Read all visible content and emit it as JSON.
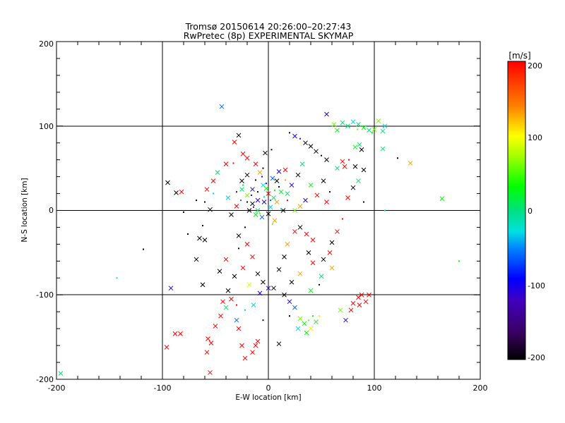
{
  "chart_data": {
    "type": "scatter",
    "title": "Tromsø 20150614 20:26:00–20:27:43",
    "subtitle": "RwPretec (8p) EXPERIMENTAL SKYMAP",
    "xlabel": "E-W location [km]",
    "ylabel": "N-S location [km]",
    "xlim": [
      -200,
      200
    ],
    "ylim": [
      -200,
      200
    ],
    "xticks": [
      "-200",
      "-100",
      "0",
      "100",
      "200"
    ],
    "yticks": [
      "-200",
      "-100",
      "0",
      "100",
      "200"
    ],
    "grid": "on (at -100, 0, 100 km)",
    "colorbar": {
      "label": "[m/s]",
      "min": -200,
      "max": 200,
      "ticks": [
        "200",
        "100",
        "0",
        "-100",
        "-200"
      ],
      "scale": "black-purple-blue-cyan-green-yellow-red"
    },
    "markers": {
      "cross": "large x marker",
      "dot": "small point"
    },
    "point_format": "[x_km, y_km, velocity_m_per_s, marker]",
    "points": [
      [
        -196,
        -193,
        5,
        "cross"
      ],
      [
        -143,
        -80,
        -20,
        "dot"
      ],
      [
        -118,
        -46,
        -200,
        "dot"
      ],
      [
        -95,
        33,
        -200,
        "cross"
      ],
      [
        -92,
        -92,
        -110,
        "cross"
      ],
      [
        -88,
        -146,
        200,
        "cross"
      ],
      [
        -83,
        -146,
        200,
        "cross"
      ],
      [
        -82,
        22,
        200,
        "cross"
      ],
      [
        -87,
        21,
        -200,
        "cross"
      ],
      [
        -96,
        -162,
        200,
        "cross"
      ],
      [
        -68,
        -58,
        -200,
        "cross"
      ],
      [
        -62,
        -88,
        -200,
        "cross"
      ],
      [
        -65,
        -33,
        -200,
        "cross"
      ],
      [
        -60,
        -35,
        -200,
        "cross"
      ],
      [
        -57,
        -152,
        200,
        "cross"
      ],
      [
        -54,
        -157,
        200,
        "cross"
      ],
      [
        -55,
        -192,
        200,
        "cross"
      ],
      [
        -58,
        -168,
        200,
        "cross"
      ],
      [
        -50,
        -137,
        200,
        "cross"
      ],
      [
        -45,
        -125,
        200,
        "cross"
      ],
      [
        -43,
        -108,
        200,
        "cross"
      ],
      [
        -44,
        123,
        -60,
        "cross"
      ],
      [
        -55,
        1,
        -200,
        "cross"
      ],
      [
        -60,
        10,
        -200,
        "dot"
      ],
      [
        -62,
        -18,
        -200,
        "dot"
      ],
      [
        -58,
        25,
        200,
        "cross"
      ],
      [
        -52,
        35,
        200,
        "cross"
      ],
      [
        -48,
        45,
        5,
        "cross"
      ],
      [
        -46,
        -72,
        -200,
        "cross"
      ],
      [
        -40,
        -58,
        200,
        "cross"
      ],
      [
        -35,
        -105,
        200,
        "cross"
      ],
      [
        -30,
        -130,
        -60,
        "cross"
      ],
      [
        -28,
        -140,
        200,
        "cross"
      ],
      [
        -25,
        -160,
        200,
        "cross"
      ],
      [
        -22,
        -175,
        200,
        "cross"
      ],
      [
        -15,
        -168,
        200,
        "cross"
      ],
      [
        -12,
        -160,
        200,
        "cross"
      ],
      [
        -10,
        -155,
        200,
        "cross"
      ],
      [
        -32,
        81,
        200,
        "cross"
      ],
      [
        -28,
        89,
        -200,
        "cross"
      ],
      [
        -24,
        67,
        200,
        "cross"
      ],
      [
        -33,
        56,
        200,
        "dot"
      ],
      [
        -25,
        35,
        -200,
        "cross"
      ],
      [
        -20,
        42,
        -200,
        "cross"
      ],
      [
        -15,
        25,
        -110,
        "cross"
      ],
      [
        -10,
        12,
        -110,
        "cross"
      ],
      [
        -5,
        30,
        -30,
        "cross"
      ],
      [
        0,
        20,
        200,
        "cross"
      ],
      [
        5,
        15,
        5,
        "cross"
      ],
      [
        8,
        35,
        -200,
        "cross"
      ],
      [
        12,
        22,
        20,
        "cross"
      ],
      [
        -8,
        45,
        130,
        "cross"
      ],
      [
        -5,
        50,
        -200,
        "dot"
      ],
      [
        -12,
        55,
        200,
        "cross"
      ],
      [
        -3,
        68,
        -200,
        "cross"
      ],
      [
        3,
        72,
        -200,
        "dot"
      ],
      [
        -18,
        0,
        -200,
        "cross"
      ],
      [
        -12,
        -5,
        30,
        "cross"
      ],
      [
        -6,
        -8,
        -60,
        "cross"
      ],
      [
        0,
        -4,
        -200,
        "cross"
      ],
      [
        6,
        -12,
        130,
        "cross"
      ],
      [
        -22,
        -20,
        -200,
        "dot"
      ],
      [
        -28,
        -30,
        -200,
        "cross"
      ],
      [
        -20,
        -40,
        200,
        "cross"
      ],
      [
        -15,
        -55,
        200,
        "cross"
      ],
      [
        -10,
        -75,
        -200,
        "cross"
      ],
      [
        -5,
        -85,
        -200,
        "cross"
      ],
      [
        0,
        -92,
        -110,
        "cross"
      ],
      [
        5,
        -92,
        -200,
        "cross"
      ],
      [
        10,
        -70,
        -200,
        "cross"
      ],
      [
        15,
        -55,
        -200,
        "cross"
      ],
      [
        18,
        -40,
        130,
        "cross"
      ],
      [
        25,
        -25,
        200,
        "cross"
      ],
      [
        30,
        -20,
        -200,
        "cross"
      ],
      [
        36,
        -28,
        200,
        "cross"
      ],
      [
        42,
        -35,
        200,
        "cross"
      ],
      [
        38,
        -50,
        -200,
        "cross"
      ],
      [
        42,
        -62,
        200,
        "cross"
      ],
      [
        30,
        -75,
        130,
        "cross"
      ],
      [
        22,
        -85,
        -200,
        "cross"
      ],
      [
        15,
        -100,
        -200,
        "cross"
      ],
      [
        20,
        -108,
        -110,
        "cross"
      ],
      [
        25,
        -115,
        -60,
        "cross"
      ],
      [
        30,
        -128,
        60,
        "cross"
      ],
      [
        34,
        -134,
        30,
        "cross"
      ],
      [
        40,
        -140,
        90,
        "cross"
      ],
      [
        45,
        -132,
        30,
        "cross"
      ],
      [
        36,
        -145,
        30,
        "cross"
      ],
      [
        28,
        -140,
        -30,
        "cross"
      ],
      [
        10,
        -158,
        -200,
        "cross"
      ],
      [
        20,
        -125,
        -200,
        "dot"
      ],
      [
        38,
        -130,
        60,
        "dot"
      ],
      [
        42,
        -125,
        30,
        "dot"
      ],
      [
        48,
        -125,
        90,
        "dot"
      ],
      [
        25,
        88,
        -110,
        "cross"
      ],
      [
        20,
        92,
        -200,
        "dot"
      ],
      [
        30,
        85,
        -110,
        "dot"
      ],
      [
        35,
        80,
        -200,
        "cross"
      ],
      [
        40,
        76,
        -200,
        "cross"
      ],
      [
        45,
        70,
        -200,
        "cross"
      ],
      [
        50,
        65,
        -200,
        "dot"
      ],
      [
        55,
        60,
        -200,
        "cross"
      ],
      [
        55,
        114,
        -110,
        "cross"
      ],
      [
        62,
        102,
        60,
        "cross"
      ],
      [
        65,
        95,
        30,
        "cross"
      ],
      [
        70,
        104,
        5,
        "cross"
      ],
      [
        75,
        100,
        5,
        "cross"
      ],
      [
        80,
        105,
        -30,
        "cross"
      ],
      [
        85,
        102,
        5,
        "cross"
      ],
      [
        90,
        98,
        30,
        "cross"
      ],
      [
        95,
        95,
        5,
        "cross"
      ],
      [
        100,
        96,
        60,
        "cross"
      ],
      [
        104,
        106,
        60,
        "cross"
      ],
      [
        108,
        94,
        5,
        "cross"
      ],
      [
        110,
        100,
        -30,
        "cross"
      ],
      [
        98,
        92,
        30,
        "dot"
      ],
      [
        92,
        100,
        5,
        "dot"
      ],
      [
        84,
        96,
        60,
        "dot"
      ],
      [
        86,
        78,
        5,
        "cross"
      ],
      [
        82,
        75,
        30,
        "cross"
      ],
      [
        88,
        72,
        -200,
        "cross"
      ],
      [
        90,
        48,
        -200,
        "cross"
      ],
      [
        82,
        52,
        -200,
        "cross"
      ],
      [
        76,
        60,
        200,
        "dot"
      ],
      [
        70,
        58,
        200,
        "cross"
      ],
      [
        72,
        52,
        200,
        "cross"
      ],
      [
        65,
        50,
        5,
        "cross"
      ],
      [
        108,
        73,
        5,
        "cross"
      ],
      [
        122,
        62,
        -200,
        "dot"
      ],
      [
        134,
        56,
        130,
        "cross"
      ],
      [
        164,
        14,
        30,
        "cross"
      ],
      [
        180,
        -60,
        30,
        "dot"
      ],
      [
        110,
        0,
        5,
        "dot"
      ],
      [
        95,
        -100,
        200,
        "cross"
      ],
      [
        88,
        -100,
        200,
        "cross"
      ],
      [
        85,
        -103,
        200,
        "cross"
      ],
      [
        78,
        -118,
        200,
        "cross"
      ],
      [
        80,
        -110,
        200,
        "cross"
      ],
      [
        86,
        -112,
        200,
        "cross"
      ],
      [
        92,
        -108,
        200,
        "cross"
      ],
      [
        73,
        -130,
        -110,
        "cross"
      ],
      [
        68,
        -118,
        60,
        "cross"
      ],
      [
        80,
        27,
        -200,
        "cross"
      ],
      [
        85,
        35,
        5,
        "cross"
      ],
      [
        75,
        15,
        200,
        "cross"
      ],
      [
        90,
        10,
        -200,
        "dot"
      ],
      [
        70,
        -10,
        200,
        "dot"
      ],
      [
        65,
        -25,
        200,
        "cross"
      ],
      [
        60,
        -38,
        -200,
        "cross"
      ],
      [
        58,
        -50,
        200,
        "cross"
      ],
      [
        52,
        -58,
        -200,
        "cross"
      ],
      [
        60,
        -68,
        130,
        "cross"
      ],
      [
        50,
        -78,
        5,
        "cross"
      ],
      [
        48,
        -88,
        -200,
        "dot"
      ],
      [
        40,
        -95,
        30,
        "cross"
      ],
      [
        55,
        10,
        200,
        "cross"
      ],
      [
        58,
        22,
        -200,
        "dot"
      ],
      [
        52,
        35,
        -200,
        "cross"
      ],
      [
        46,
        18,
        200,
        "cross"
      ],
      [
        40,
        30,
        30,
        "cross"
      ],
      [
        35,
        12,
        -110,
        "cross"
      ],
      [
        30,
        5,
        130,
        "cross"
      ],
      [
        25,
        0,
        60,
        "cross"
      ],
      [
        -40,
        55,
        200,
        "cross"
      ],
      [
        -52,
        20,
        -30,
        "dot"
      ],
      [
        -68,
        12,
        -200,
        "dot"
      ],
      [
        -80,
        -2,
        -200,
        "dot"
      ],
      [
        -76,
        -28,
        -200,
        "dot"
      ],
      [
        -35,
        -5,
        -200,
        "cross"
      ],
      [
        -30,
        5,
        200,
        "cross"
      ],
      [
        -38,
        15,
        -30,
        "cross"
      ],
      [
        -25,
        25,
        5,
        "cross"
      ],
      [
        -20,
        18,
        60,
        "cross"
      ],
      [
        -15,
        8,
        -200,
        "cross"
      ],
      [
        -10,
        0,
        5,
        "cross"
      ],
      [
        -4,
        10,
        -110,
        "cross"
      ],
      [
        2,
        4,
        -30,
        "cross"
      ],
      [
        8,
        10,
        130,
        "cross"
      ],
      [
        14,
        0,
        -200,
        "cross"
      ],
      [
        18,
        20,
        5,
        "cross"
      ],
      [
        22,
        30,
        -110,
        "cross"
      ],
      [
        -28,
        -45,
        -200,
        "dot"
      ],
      [
        -32,
        -78,
        -200,
        "cross"
      ],
      [
        -24,
        -68,
        200,
        "cross"
      ],
      [
        -18,
        -88,
        90,
        "cross"
      ],
      [
        -8,
        -98,
        -110,
        "cross"
      ],
      [
        -38,
        -95,
        -200,
        "cross"
      ],
      [
        -40,
        -115,
        5,
        "cross"
      ],
      [
        -30,
        -112,
        200,
        "dot"
      ],
      [
        -22,
        -118,
        5,
        "dot"
      ],
      [
        -14,
        -112,
        -30,
        "cross"
      ],
      [
        -5,
        -130,
        -200,
        "dot"
      ],
      [
        -2,
        26,
        30,
        "cross"
      ],
      [
        4,
        38,
        -60,
        "cross"
      ],
      [
        10,
        46,
        -110,
        "cross"
      ],
      [
        16,
        48,
        200,
        "cross"
      ],
      [
        -20,
        62,
        200,
        "cross"
      ],
      [
        28,
        42,
        -200,
        "cross"
      ],
      [
        32,
        55,
        5,
        "cross"
      ],
      [
        -26,
        12,
        -60,
        "dot"
      ],
      [
        -16,
        18,
        -110,
        "dot"
      ],
      [
        -10,
        22,
        -200,
        "dot"
      ],
      [
        -4,
        16,
        5,
        "dot"
      ],
      [
        2,
        12,
        -60,
        "dot"
      ],
      [
        6,
        24,
        30,
        "dot"
      ],
      [
        -14,
        4,
        -110,
        "dot"
      ],
      [
        -8,
        -4,
        60,
        "dot"
      ],
      [
        -20,
        10,
        -200,
        "dot"
      ],
      [
        -2,
        32,
        -110,
        "dot"
      ],
      [
        10,
        28,
        -200,
        "dot"
      ],
      [
        12,
        2,
        -30,
        "dot"
      ],
      [
        -24,
        30,
        5,
        "dot"
      ],
      [
        -12,
        36,
        -200,
        "dot"
      ],
      [
        18,
        12,
        200,
        "dot"
      ],
      [
        4,
        -16,
        60,
        "dot"
      ],
      [
        -30,
        22,
        -110,
        "dot"
      ],
      [
        16,
        36,
        130,
        "dot"
      ],
      [
        -6,
        40,
        -110,
        "dot"
      ]
    ]
  }
}
